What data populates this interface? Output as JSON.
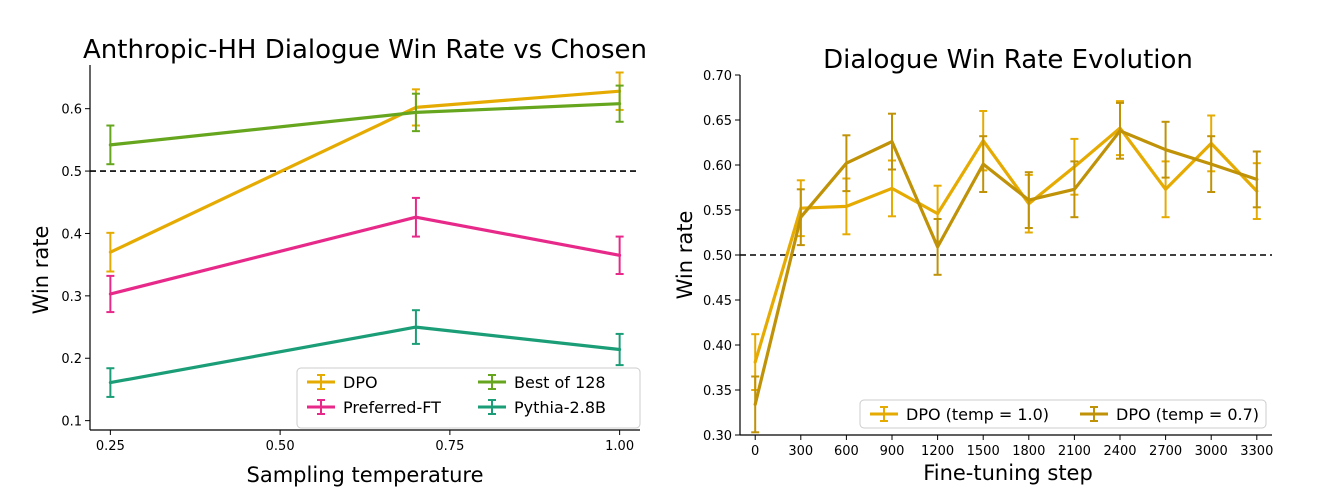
{
  "chart_data": [
    {
      "type": "line",
      "title": "Anthropic-HH Dialogue Win Rate vs Chosen",
      "xlabel": "Sampling temperature",
      "ylabel": "Win rate",
      "xlim": [
        0.22,
        1.03
      ],
      "ylim": [
        0.085,
        0.67
      ],
      "xticks": [
        0.25,
        0.5,
        0.75,
        1.0
      ],
      "xtick_labels": [
        "0.25",
        "0.50",
        "0.75",
        "1.00"
      ],
      "yticks": [
        0.1,
        0.2,
        0.3,
        0.4,
        0.5,
        0.6
      ],
      "ytick_labels": [
        "0.1",
        "0.2",
        "0.3",
        "0.4",
        "0.5",
        "0.6"
      ],
      "reference_line": 0.5,
      "grid": false,
      "legend_position": "bottom-right",
      "x": [
        0.25,
        0.7,
        1.0
      ],
      "series": [
        {
          "name": "DPO",
          "color": "#e6ab02",
          "values": [
            0.37,
            0.602,
            0.628
          ],
          "errors": [
            0.031,
            0.029,
            0.03
          ]
        },
        {
          "name": "Best of 128",
          "color": "#66a61e",
          "values": [
            0.542,
            0.594,
            0.608
          ],
          "errors": [
            0.031,
            0.03,
            0.029
          ]
        },
        {
          "name": "Preferred-FT",
          "color": "#e7298a",
          "values": [
            0.303,
            0.426,
            0.365
          ],
          "errors": [
            0.029,
            0.031,
            0.03
          ]
        },
        {
          "name": "Pythia-2.8B",
          "color": "#1b9e77",
          "values": [
            0.161,
            0.25,
            0.214
          ],
          "errors": [
            0.023,
            0.027,
            0.025
          ]
        }
      ]
    },
    {
      "type": "line",
      "title": "Dialogue Win Rate Evolution",
      "xlabel": "Fine-tuning step",
      "ylabel": "Win rate",
      "xlim": [
        -100,
        3400
      ],
      "ylim": [
        0.3,
        0.7
      ],
      "xticks": [
        0,
        300,
        600,
        900,
        1200,
        1500,
        1800,
        2100,
        2400,
        2700,
        3000,
        3300
      ],
      "xtick_labels": [
        "0",
        "300",
        "600",
        "900",
        "1200",
        "1500",
        "1800",
        "2100",
        "2400",
        "2700",
        "3000",
        "3300"
      ],
      "yticks": [
        0.3,
        0.35,
        0.4,
        0.45,
        0.5,
        0.55,
        0.6,
        0.65,
        0.7
      ],
      "ytick_labels": [
        "0.30",
        "0.35",
        "0.40",
        "0.45",
        "0.50",
        "0.55",
        "0.60",
        "0.65",
        "0.70"
      ],
      "reference_line": 0.5,
      "grid": false,
      "legend_position": "bottom-center",
      "x": [
        0,
        300,
        600,
        900,
        1200,
        1500,
        1800,
        2100,
        2400,
        2700,
        3000,
        3300
      ],
      "series": [
        {
          "name": "DPO (temp = 1.0)",
          "color": "#e6ab02",
          "values": [
            0.381,
            0.552,
            0.554,
            0.574,
            0.546,
            0.627,
            0.557,
            0.598,
            0.641,
            0.573,
            0.624,
            0.571
          ],
          "errors": [
            0.031,
            0.031,
            0.031,
            0.031,
            0.031,
            0.033,
            0.032,
            0.031,
            0.03,
            0.031,
            0.031,
            0.031
          ]
        },
        {
          "name": "DPO (temp = 0.7)",
          "color": "#c09208",
          "values": [
            0.334,
            0.542,
            0.602,
            0.626,
            0.509,
            0.601,
            0.561,
            0.573,
            0.638,
            0.617,
            0.601,
            0.584
          ],
          "errors": [
            0.031,
            0.031,
            0.031,
            0.031,
            0.031,
            0.031,
            0.031,
            0.031,
            0.031,
            0.031,
            0.031,
            0.031
          ]
        }
      ]
    }
  ]
}
